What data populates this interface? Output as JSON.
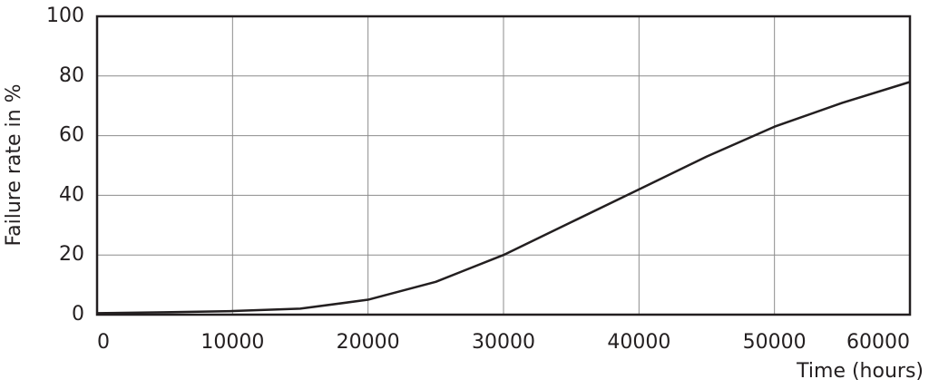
{
  "chart_data": {
    "type": "line",
    "x_label": "Time (hours)",
    "y_label": "Failure rate in %",
    "x": [
      0,
      5000,
      10000,
      15000,
      20000,
      25000,
      30000,
      35000,
      40000,
      45000,
      50000,
      55000,
      60000
    ],
    "series": [
      {
        "name": "Failure rate",
        "color": "#231f20",
        "values": [
          0.5,
          0.8,
          1.2,
          2,
          5,
          11,
          20,
          31,
          42,
          53,
          63,
          71,
          78
        ]
      }
    ],
    "xlim": [
      0,
      60000
    ],
    "xticks": [
      0,
      10000,
      20000,
      30000,
      40000,
      50000,
      60000
    ],
    "ylim": [
      0,
      100
    ],
    "yticks": [
      0,
      20,
      40,
      60,
      80,
      100
    ],
    "grid": true
  }
}
